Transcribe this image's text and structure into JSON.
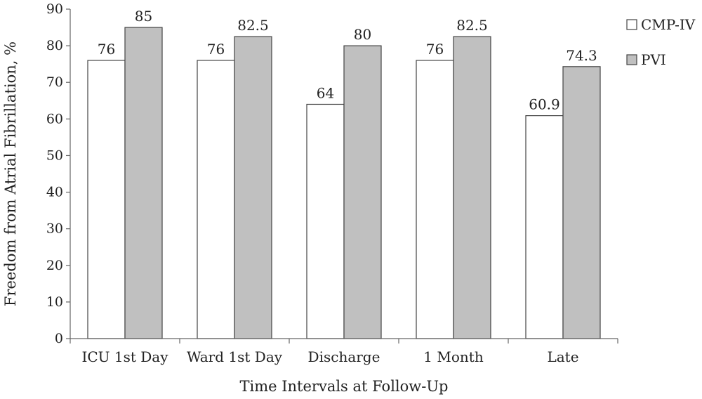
{
  "chart_data": {
    "type": "bar",
    "title": "",
    "xlabel": "Time Intervals at Follow-Up",
    "ylabel": "Freedom from Atrial Fibrillation, %",
    "ylim": [
      0,
      90
    ],
    "yticks": [
      0,
      10,
      20,
      30,
      40,
      50,
      60,
      70,
      80,
      90
    ],
    "grid": false,
    "legend_position": "right",
    "categories": [
      "ICU 1st Day",
      "Ward 1st Day",
      "Discharge",
      "1 Month",
      "Late"
    ],
    "series": [
      {
        "name": "CMP-IV",
        "color": "#ffffff",
        "values": [
          76,
          76,
          64,
          76,
          60.9
        ],
        "labels": [
          "76",
          "76",
          "64",
          "76",
          "60.9"
        ]
      },
      {
        "name": "PVI",
        "color": "#c0c0c0",
        "values": [
          85,
          82.5,
          80,
          82.5,
          74.3
        ],
        "labels": [
          "85",
          "82.5",
          "80",
          "82.5",
          "74.3"
        ]
      }
    ]
  }
}
